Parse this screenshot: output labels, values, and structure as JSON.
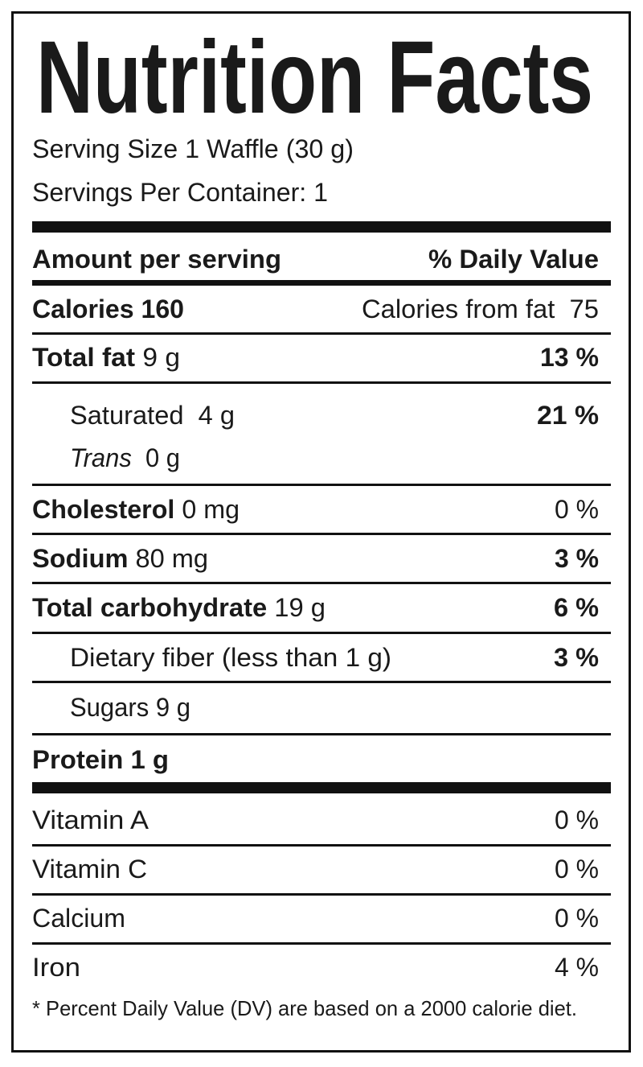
{
  "title": "Nutrition Facts",
  "serving_size": "Serving Size 1 Waffle (30 g)",
  "servings_per_container": "Servings Per Container: 1",
  "header": {
    "amount": "Amount per serving",
    "daily_value": "% Daily Value"
  },
  "calories": {
    "label": "Calories 160",
    "from_fat": "Calories from fat  75"
  },
  "rows": [
    {
      "label": "Total fat",
      "amount": " 9 g",
      "dv": "13 %"
    },
    {
      "label": "Saturated",
      "amount": "  4 g",
      "dv": "21 %"
    },
    {
      "label": "Trans",
      "amount": "  0 g",
      "dv": ""
    },
    {
      "label": "Cholesterol",
      "amount": " 0 mg",
      "dv": "0 %"
    },
    {
      "label": "Sodium",
      "amount": " 80 mg",
      "dv": "3 %"
    },
    {
      "label": "Total carbohydrate",
      "amount": " 19 g",
      "dv": "6 %"
    },
    {
      "label": "Dietary fiber (less than 1 g)",
      "amount": "",
      "dv": "3 %"
    },
    {
      "label": "Sugars 9 g",
      "amount": "",
      "dv": ""
    },
    {
      "label": "Protein 1 g",
      "amount": "",
      "dv": ""
    }
  ],
  "vitamins": [
    {
      "label": "Vitamin A",
      "dv": "0 %"
    },
    {
      "label": "Vitamin C",
      "dv": "0 %"
    },
    {
      "label": "Calcium",
      "dv": "0 %"
    },
    {
      "label": "Iron",
      "dv": "4 %"
    }
  ],
  "footnote": "* Percent Daily Value (DV) are based on a 2000 calorie diet."
}
